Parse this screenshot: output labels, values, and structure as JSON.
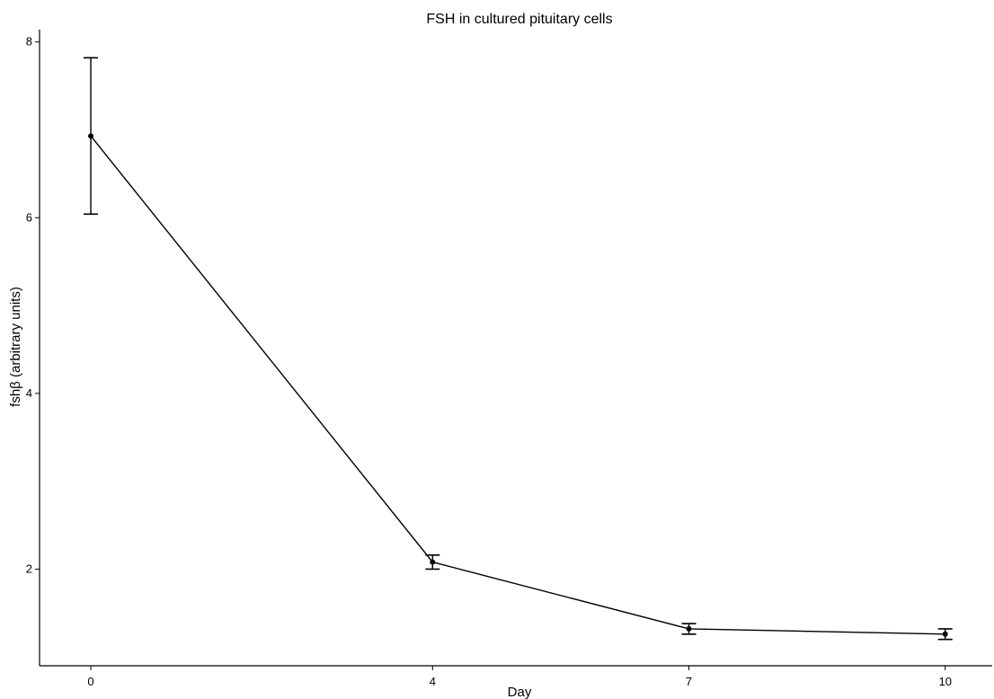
{
  "chart_data": {
    "type": "line",
    "title": "FSH in cultured pituitary cells",
    "xlabel": "Day",
    "ylabel": "fshβ (arbitrary units)",
    "x_ticks": [
      0,
      4,
      7,
      10
    ],
    "y_ticks": [
      2,
      4,
      6,
      8
    ],
    "xlim": [
      -0.6,
      10.55
    ],
    "ylim": [
      0.9,
      8.14
    ],
    "grid": false,
    "series": [
      {
        "x": [
          0,
          4,
          7,
          10
        ],
        "values": [
          6.93,
          2.08,
          1.32,
          1.26
        ],
        "error_low": [
          6.04,
          2.0,
          1.26,
          1.2
        ],
        "error_high": [
          7.82,
          2.16,
          1.38,
          1.32
        ]
      }
    ]
  }
}
